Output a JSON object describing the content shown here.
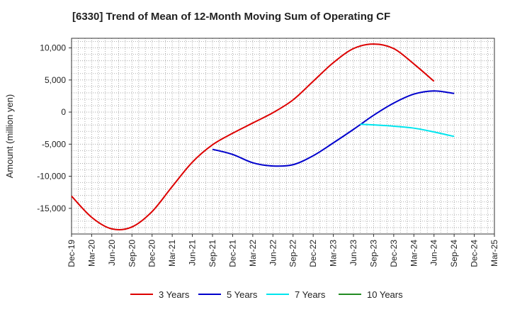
{
  "chart_data": {
    "type": "line",
    "title": "[6330]  Trend of Mean of 12-Month Moving Sum of Operating CF",
    "xlabel": "",
    "ylabel": "Amount (million yen)",
    "ylim": [
      -19000,
      11500
    ],
    "yticks": [
      10000,
      5000,
      0,
      -5000,
      -10000,
      -15000
    ],
    "ytick_labels": [
      "10,000",
      "5,000",
      "0",
      "-5,000",
      "-10,000",
      "-15,000"
    ],
    "x_tick_labels": [
      "Dec-19",
      "Mar-20",
      "Jun-20",
      "Sep-20",
      "Dec-20",
      "Mar-21",
      "Jun-21",
      "Sep-21",
      "Dec-21",
      "Mar-22",
      "Jun-22",
      "Sep-22",
      "Dec-22",
      "Mar-23",
      "Jun-23",
      "Sep-23",
      "Dec-23",
      "Mar-24",
      "Jun-24",
      "Sep-24",
      "Dec-24",
      "Mar-25"
    ],
    "grid": true,
    "legend_position": "bottom",
    "series": [
      {
        "name": "3 Years",
        "color": "#dd0000",
        "x": [
          0,
          1,
          2,
          3,
          4,
          5,
          6,
          7,
          8,
          9,
          10,
          11,
          12,
          13,
          14,
          15,
          16,
          17,
          18,
          19
        ],
        "values": [
          -13100,
          -16400,
          -18200,
          -17900,
          -15500,
          -11600,
          -7800,
          -5100,
          -3300,
          -1700,
          -100,
          1900,
          4800,
          7700,
          9900,
          10600,
          9900,
          7500,
          4800,
          null
        ]
      },
      {
        "name": "5 Years",
        "color": "#0000cc",
        "x": [
          7,
          8,
          9,
          10,
          11,
          12,
          13,
          14,
          15,
          16,
          17,
          18,
          19
        ],
        "values": [
          -5800,
          -6600,
          -7900,
          -8400,
          -8200,
          -6800,
          -4800,
          -2700,
          -500,
          1400,
          2800,
          3300,
          2900
        ]
      },
      {
        "name": "7 Years",
        "color": "#00e5ee",
        "x": [
          14.33,
          15,
          16,
          17,
          18,
          19
        ],
        "values": [
          -1900,
          -2000,
          -2200,
          -2500,
          -3100,
          -3800
        ]
      },
      {
        "name": "10 Years",
        "color": "#228b22",
        "x": [],
        "values": []
      }
    ]
  }
}
